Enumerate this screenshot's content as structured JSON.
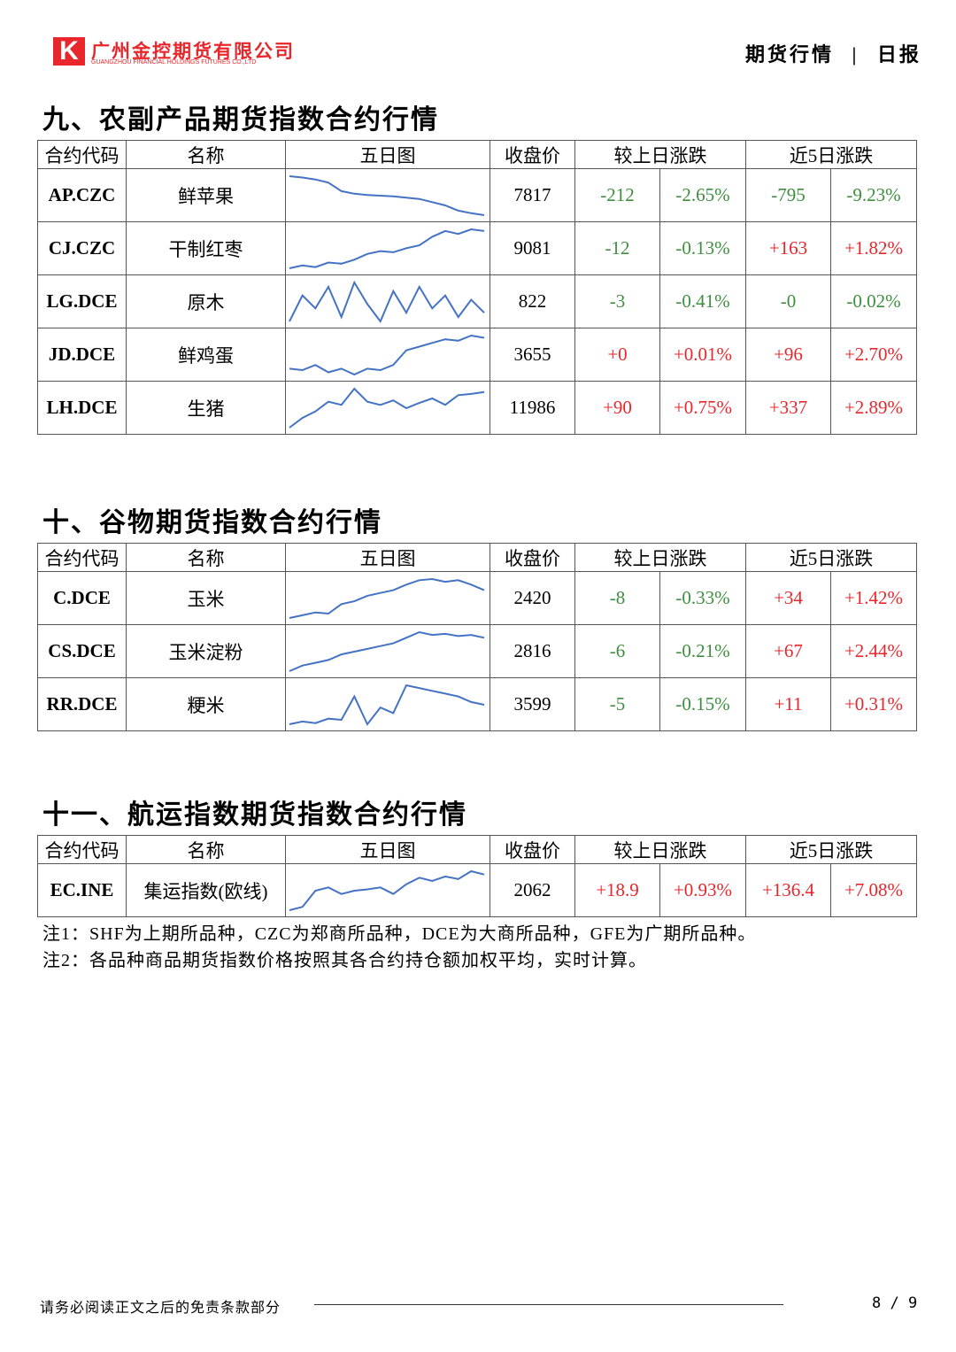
{
  "header": {
    "company": "广州金控期货有限公司",
    "company_en": "GUANGZHOU FINANCIAL HOLDINGS FUTURES CO.,LTD",
    "report": "期货行情",
    "report_type": "日报"
  },
  "sections": [
    {
      "title": "九、农副产品期货指数合约行情",
      "columns": [
        "合约代码",
        "名称",
        "五日图",
        "收盘价",
        "较上日涨跌",
        "近5日涨跌"
      ],
      "rows": [
        {
          "code": "AP.CZC",
          "name": "鲜苹果",
          "spark": [
            95,
            93,
            90,
            85,
            72,
            68,
            66,
            65,
            64,
            62,
            60,
            55,
            50,
            42,
            38,
            35
          ],
          "close": "7817",
          "day_change": "-212",
          "day_pct": "-2.65%",
          "week_change": "-795",
          "week_pct": "-9.23%"
        },
        {
          "code": "CJ.CZC",
          "name": "干制红枣",
          "spark": [
            20,
            25,
            22,
            30,
            28,
            35,
            45,
            50,
            48,
            55,
            60,
            75,
            85,
            80,
            88,
            85
          ],
          "close": "9081",
          "day_change": "-12",
          "day_pct": "-0.13%",
          "week_change": "+163",
          "week_pct": "+1.82%"
        },
        {
          "code": "LG.DCE",
          "name": "原木",
          "spark": [
            40,
            70,
            55,
            80,
            45,
            85,
            60,
            40,
            75,
            50,
            80,
            55,
            70,
            45,
            65,
            50
          ],
          "close": "822",
          "day_change": "-3",
          "day_pct": "-0.41%",
          "week_change": "-0",
          "week_pct": "-0.02%"
        },
        {
          "code": "JD.DCE",
          "name": "鲜鸡蛋",
          "spark": [
            30,
            28,
            35,
            25,
            30,
            22,
            30,
            28,
            35,
            55,
            60,
            65,
            70,
            68,
            75,
            72
          ],
          "close": "3655",
          "day_change": "+0",
          "day_pct": "+0.01%",
          "week_change": "+96",
          "week_pct": "+2.70%"
        },
        {
          "code": "LH.DCE",
          "name": "生猪",
          "spark": [
            20,
            35,
            45,
            60,
            55,
            80,
            60,
            55,
            62,
            50,
            58,
            65,
            55,
            70,
            72,
            75
          ],
          "close": "11986",
          "day_change": "+90",
          "day_pct": "+0.75%",
          "week_change": "+337",
          "week_pct": "+2.89%"
        }
      ]
    },
    {
      "title": "十、谷物期货指数合约行情",
      "columns": [
        "合约代码",
        "名称",
        "五日图",
        "收盘价",
        "较上日涨跌",
        "近5日涨跌"
      ],
      "rows": [
        {
          "code": "C.DCE",
          "name": "玉米",
          "spark": [
            20,
            25,
            30,
            28,
            45,
            50,
            60,
            65,
            70,
            80,
            88,
            90,
            85,
            88,
            80,
            70
          ],
          "close": "2420",
          "day_change": "-8",
          "day_pct": "-0.33%",
          "week_change": "+34",
          "week_pct": "+1.42%"
        },
        {
          "code": "CS.DCE",
          "name": "玉米淀粉",
          "spark": [
            15,
            25,
            30,
            35,
            45,
            50,
            55,
            60,
            65,
            75,
            85,
            80,
            82,
            78,
            80,
            75
          ],
          "close": "2816",
          "day_change": "-6",
          "day_pct": "-0.21%",
          "week_change": "+67",
          "week_pct": "+2.44%"
        },
        {
          "code": "RR.DCE",
          "name": "粳米",
          "spark": [
            20,
            25,
            22,
            30,
            28,
            70,
            20,
            50,
            40,
            90,
            85,
            80,
            75,
            70,
            60,
            55
          ],
          "close": "3599",
          "day_change": "-5",
          "day_pct": "-0.15%",
          "week_change": "+11",
          "week_pct": "+0.31%"
        }
      ]
    },
    {
      "title": "十一、航运指数期货指数合约行情",
      "columns": [
        "合约代码",
        "名称",
        "五日图",
        "收盘价",
        "较上日涨跌",
        "近5日涨跌"
      ],
      "rows": [
        {
          "code": "EC.INE",
          "name": "集运指数(欧线)",
          "spark": [
            20,
            25,
            50,
            55,
            45,
            50,
            52,
            55,
            45,
            60,
            70,
            65,
            72,
            68,
            80,
            75
          ],
          "close": "2062",
          "day_change": "+18.9",
          "day_pct": "+0.93%",
          "week_change": "+136.4",
          "week_pct": "+7.08%"
        }
      ]
    }
  ],
  "notes": [
    "注1：SHF为上期所品种，CZC为郑商所品种，DCE为大商所品种，GFE为广期所品种。",
    "注2：各品种商品期货指数价格按照其各合约持仓额加权平均，实时计算。"
  ],
  "footer": {
    "disclaimer": "请务必阅读正文之后的免责条款部分",
    "page": "8 / 9"
  }
}
